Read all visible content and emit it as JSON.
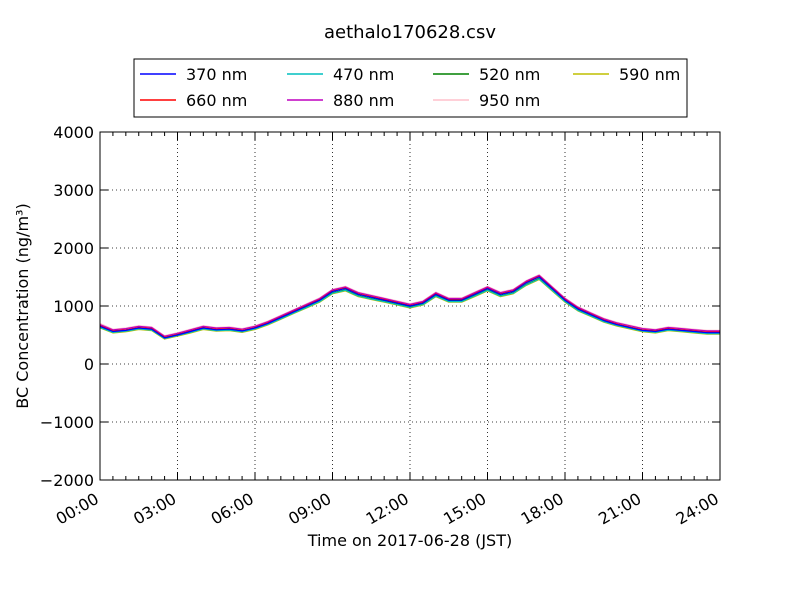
{
  "chart_data": {
    "type": "line",
    "title": "aethalo170628.csv",
    "xlabel": "Time on 2017-06-28 (JST)",
    "ylabel": "BC Concentration (ng/m³)",
    "ylim": [
      -2000,
      4000
    ],
    "xlim": [
      "00:00",
      "24:00"
    ],
    "x_tick_labels": [
      "00:00",
      "03:00",
      "06:00",
      "09:00",
      "12:00",
      "15:00",
      "18:00",
      "21:00",
      "24:00"
    ],
    "y_tick_labels": [
      "4000",
      "3000",
      "2000",
      "1000",
      "0",
      "−1000",
      "−2000"
    ],
    "y_ticks": [
      4000,
      3000,
      2000,
      1000,
      0,
      -1000,
      -2000
    ],
    "grid": true,
    "legend_position": "top",
    "x_hours": [
      0,
      0.5,
      1,
      1.5,
      2,
      2.5,
      3,
      3.5,
      4,
      4.5,
      5,
      5.5,
      6,
      6.5,
      7,
      7.5,
      8,
      8.5,
      9,
      9.5,
      10,
      10.5,
      11,
      11.5,
      12,
      12.5,
      13,
      13.5,
      14,
      14.5,
      15,
      15.5,
      16,
      16.5,
      17,
      17.5,
      18,
      18.5,
      19,
      19.5,
      20,
      20.5,
      21,
      21.5,
      22,
      22.5,
      23,
      23.5,
      24
    ],
    "series": [
      {
        "name": "370 nm",
        "color": "#0000ff",
        "values": [
          650,
          560,
          580,
          620,
          600,
          450,
          500,
          560,
          620,
          590,
          600,
          570,
          620,
          700,
          800,
          900,
          1000,
          1100,
          1250,
          1300,
          1200,
          1150,
          1100,
          1050,
          1000,
          1050,
          1200,
          1100,
          1100,
          1200,
          1300,
          1200,
          1250,
          1400,
          1500,
          1300,
          1100,
          950,
          850,
          750,
          680,
          630,
          580,
          560,
          600,
          580,
          560,
          540,
          540
        ]
      },
      {
        "name": "470 nm",
        "color": "#00bfbf",
        "values": [
          630,
          545,
          565,
          605,
          585,
          440,
          490,
          545,
          605,
          575,
          585,
          555,
          605,
          685,
          780,
          880,
          975,
          1075,
          1220,
          1270,
          1170,
          1120,
          1075,
          1025,
          975,
          1025,
          1170,
          1075,
          1075,
          1170,
          1270,
          1170,
          1220,
          1365,
          1465,
          1270,
          1075,
          925,
          830,
          730,
          665,
          615,
          565,
          545,
          585,
          565,
          545,
          525,
          525
        ]
      },
      {
        "name": "520 nm",
        "color": "#008000",
        "values": [
          640,
          555,
          575,
          615,
          595,
          450,
          500,
          555,
          615,
          585,
          595,
          565,
          615,
          695,
          790,
          890,
          985,
          1085,
          1230,
          1280,
          1180,
          1130,
          1085,
          1035,
          985,
          1035,
          1180,
          1085,
          1085,
          1180,
          1280,
          1180,
          1230,
          1375,
          1475,
          1280,
          1085,
          935,
          840,
          740,
          675,
          625,
          575,
          555,
          595,
          575,
          555,
          535,
          535
        ]
      },
      {
        "name": "590 nm",
        "color": "#bfbf00",
        "values": [
          620,
          535,
          555,
          595,
          575,
          430,
          480,
          535,
          595,
          565,
          575,
          545,
          595,
          675,
          770,
          870,
          965,
          1065,
          1210,
          1260,
          1160,
          1110,
          1065,
          1015,
          965,
          1015,
          1160,
          1065,
          1065,
          1160,
          1260,
          1160,
          1210,
          1355,
          1455,
          1260,
          1065,
          915,
          820,
          720,
          655,
          605,
          555,
          535,
          575,
          555,
          535,
          515,
          515
        ]
      },
      {
        "name": "660 nm",
        "color": "#ff0000",
        "values": [
          660,
          570,
          590,
          630,
          610,
          460,
          510,
          570,
          630,
          600,
          610,
          580,
          630,
          710,
          810,
          910,
          1010,
          1110,
          1260,
          1310,
          1210,
          1160,
          1110,
          1060,
          1010,
          1060,
          1210,
          1110,
          1110,
          1210,
          1310,
          1210,
          1260,
          1410,
          1510,
          1310,
          1110,
          960,
          860,
          760,
          690,
          640,
          590,
          570,
          610,
          590,
          570,
          550,
          550
        ]
      },
      {
        "name": "880 nm",
        "color": "#bf00bf",
        "values": [
          680,
          590,
          610,
          650,
          630,
          480,
          530,
          590,
          650,
          620,
          630,
          600,
          650,
          730,
          830,
          930,
          1030,
          1130,
          1280,
          1330,
          1230,
          1180,
          1130,
          1080,
          1030,
          1080,
          1230,
          1130,
          1130,
          1230,
          1330,
          1230,
          1280,
          1430,
          1530,
          1330,
          1130,
          980,
          880,
          780,
          710,
          660,
          610,
          590,
          630,
          610,
          590,
          570,
          570
        ]
      },
      {
        "name": "950 nm",
        "color": "#ffc0cb",
        "values": [
          700,
          600,
          620,
          660,
          640,
          490,
          540,
          600,
          660,
          630,
          640,
          610,
          660,
          740,
          840,
          940,
          1040,
          1140,
          1290,
          1340,
          1240,
          1190,
          1140,
          1090,
          1040,
          1090,
          1240,
          1140,
          1140,
          1240,
          1340,
          1240,
          1290,
          1440,
          1540,
          1340,
          1140,
          990,
          890,
          790,
          720,
          670,
          620,
          600,
          640,
          620,
          600,
          580,
          580
        ]
      }
    ]
  }
}
